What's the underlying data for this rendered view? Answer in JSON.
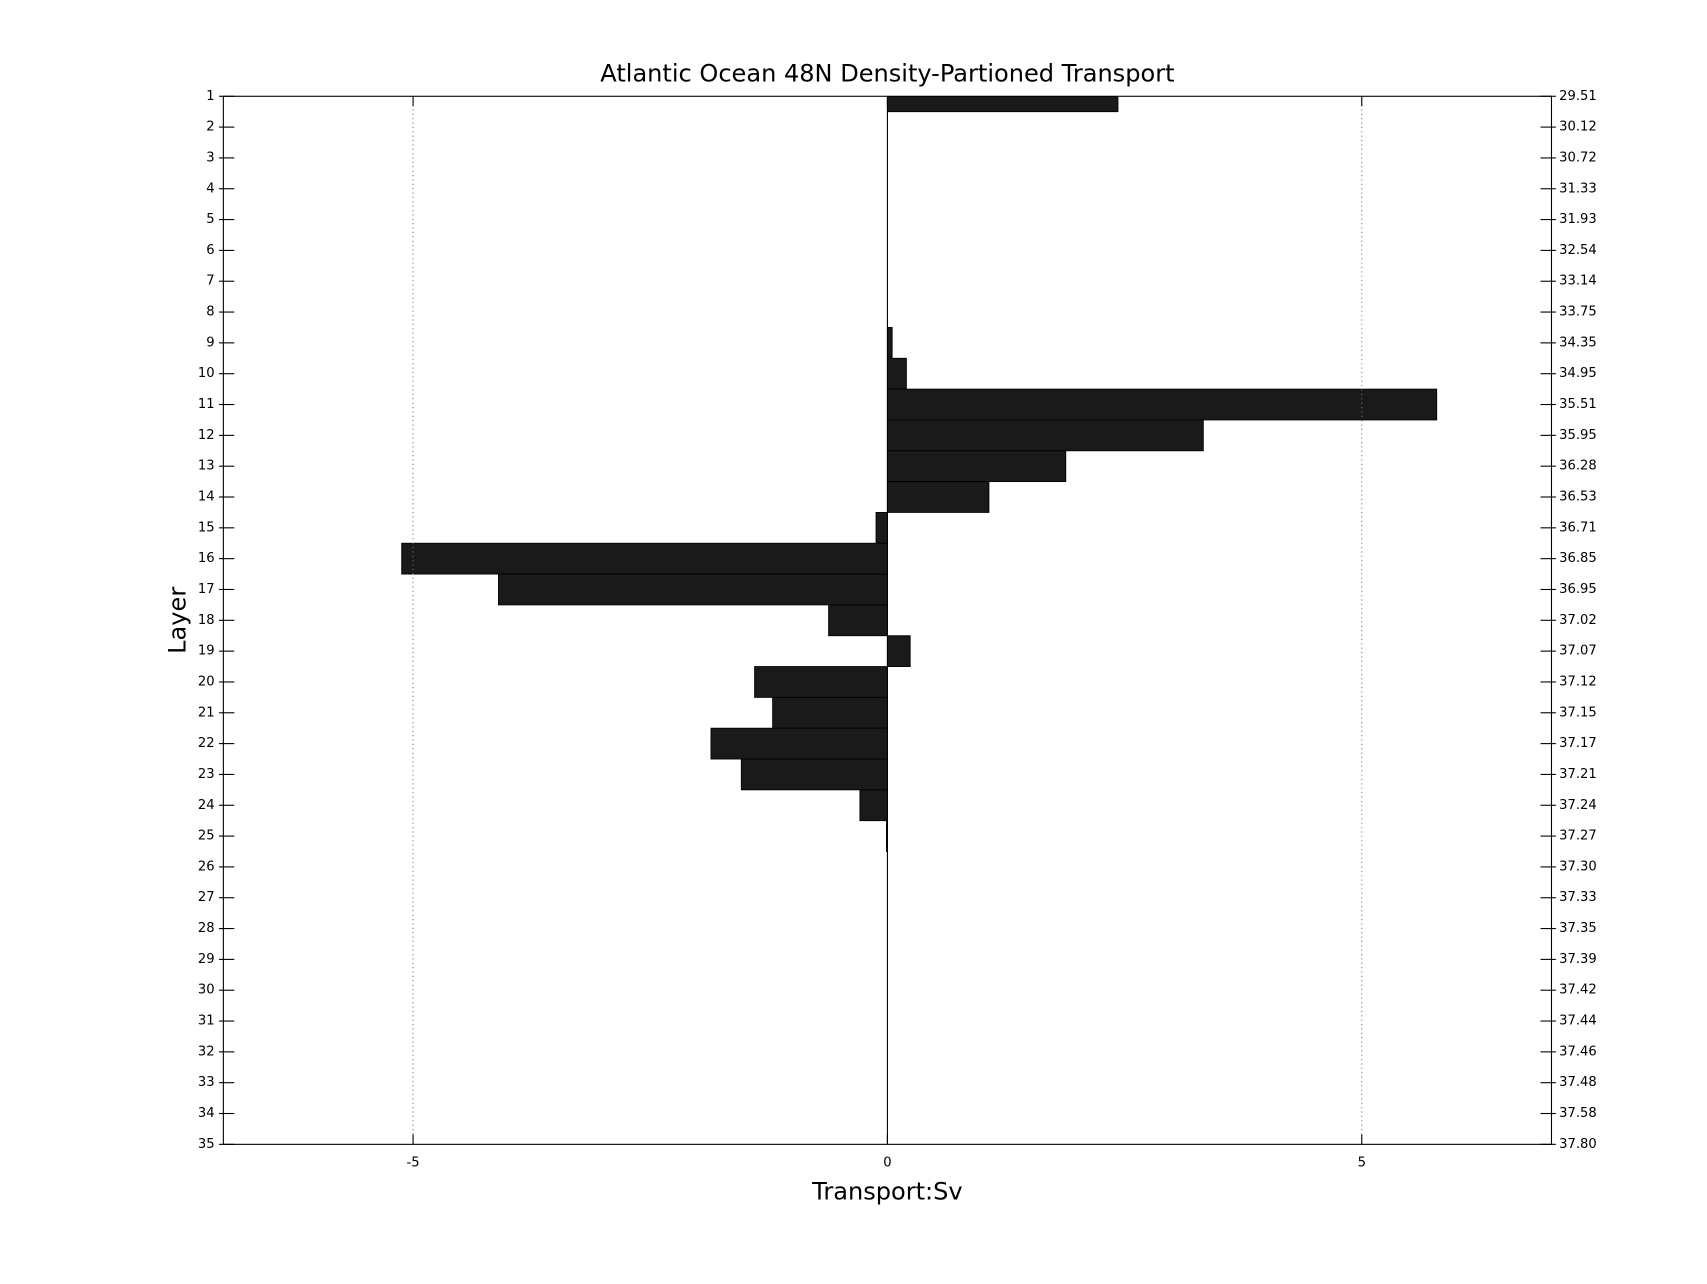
{
  "chart_data": {
    "type": "barh",
    "title": "Atlantic Ocean 48N Density-Partioned Transport",
    "xlabel": "Transport:Sv",
    "ylabel": "Layer",
    "y": [
      1,
      2,
      3,
      4,
      5,
      6,
      7,
      8,
      9,
      10,
      11,
      12,
      13,
      14,
      15,
      16,
      17,
      18,
      19,
      20,
      21,
      22,
      23,
      24,
      25,
      26,
      27,
      28,
      29,
      30,
      31,
      32,
      33,
      34,
      35
    ],
    "values": [
      2.43,
      0,
      0,
      0,
      0,
      0,
      0,
      0,
      0.05,
      0.2,
      5.79,
      3.33,
      1.88,
      1.07,
      -0.12,
      -5.12,
      -4.1,
      -0.62,
      0.24,
      -1.4,
      -1.21,
      -1.86,
      -1.54,
      -0.29,
      -0.01,
      0,
      0,
      0,
      0,
      0,
      0,
      0,
      0,
      0,
      0
    ],
    "color": "#1a1a1a",
    "xlim": [
      -7,
      7
    ],
    "xticks": [
      -5,
      0,
      5
    ],
    "ylim": [
      1,
      35
    ],
    "yticks": [
      1,
      2,
      3,
      4,
      5,
      6,
      7,
      8,
      9,
      10,
      11,
      12,
      13,
      14,
      15,
      16,
      17,
      18,
      19,
      20,
      21,
      22,
      23,
      24,
      25,
      26,
      27,
      28,
      29,
      30,
      31,
      32,
      33,
      34,
      35
    ],
    "y2lim": [
      1,
      35
    ],
    "y2ticks": [
      {
        "value": 1,
        "label": "29.51"
      },
      {
        "value": 2,
        "label": "30.12"
      },
      {
        "value": 3,
        "label": "30.72"
      },
      {
        "value": 4,
        "label": "31.33"
      },
      {
        "value": 5,
        "label": "31.93"
      },
      {
        "value": 6,
        "label": "32.54"
      },
      {
        "value": 7,
        "label": "33.14"
      },
      {
        "value": 8,
        "label": "33.75"
      },
      {
        "value": 9,
        "label": "34.35"
      },
      {
        "value": 10,
        "label": "34.95"
      },
      {
        "value": 11,
        "label": "35.51"
      },
      {
        "value": 12,
        "label": "35.95"
      },
      {
        "value": 13,
        "label": "36.28"
      },
      {
        "value": 14,
        "label": "36.53"
      },
      {
        "value": 15,
        "label": "36.71"
      },
      {
        "value": 16,
        "label": "36.85"
      },
      {
        "value": 17,
        "label": "36.95"
      },
      {
        "value": 18,
        "label": "37.02"
      },
      {
        "value": 19,
        "label": "37.07"
      },
      {
        "value": 20,
        "label": "37.12"
      },
      {
        "value": 21,
        "label": "37.15"
      },
      {
        "value": 22,
        "label": "37.17"
      },
      {
        "value": 23,
        "label": "37.21"
      },
      {
        "value": 24,
        "label": "37.24"
      },
      {
        "value": 25,
        "label": "37.27"
      },
      {
        "value": 26,
        "label": "37.30"
      },
      {
        "value": 27,
        "label": "37.33"
      },
      {
        "value": 28,
        "label": "37.35"
      },
      {
        "value": 29,
        "label": "37.39"
      },
      {
        "value": 30,
        "label": "37.42"
      },
      {
        "value": 31,
        "label": "37.44"
      },
      {
        "value": 32,
        "label": "37.46"
      },
      {
        "value": 33,
        "label": "37.48"
      },
      {
        "value": 34,
        "label": "37.58"
      },
      {
        "value": 35,
        "label": "37.80"
      }
    ],
    "grid": true,
    "y_reversed": true
  }
}
